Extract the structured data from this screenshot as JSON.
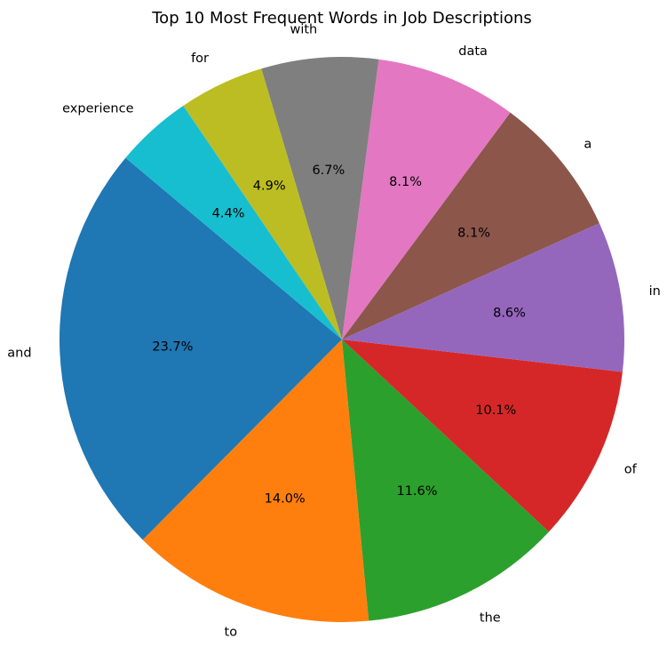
{
  "chart_data": {
    "type": "pie",
    "title": "Top 10 Most Frequent Words in Job Descriptions",
    "start_angle_degrees": 140,
    "direction": "counterclockwise",
    "slices": [
      {
        "label": "and",
        "value": 23.7,
        "pct_label": "23.7%",
        "color": "#1f77b4"
      },
      {
        "label": "to",
        "value": 14.0,
        "pct_label": "14.0%",
        "color": "#ff7f0e"
      },
      {
        "label": "the",
        "value": 11.6,
        "pct_label": "11.6%",
        "color": "#2ca02c"
      },
      {
        "label": "of",
        "value": 10.1,
        "pct_label": "10.1%",
        "color": "#d62728"
      },
      {
        "label": "in",
        "value": 8.6,
        "pct_label": "8.6%",
        "color": "#9467bd"
      },
      {
        "label": "a",
        "value": 8.1,
        "pct_label": "8.1%",
        "color": "#8c564b"
      },
      {
        "label": "data",
        "value": 8.1,
        "pct_label": "8.1%",
        "color": "#e377c2"
      },
      {
        "label": "with",
        "value": 6.7,
        "pct_label": "6.7%",
        "color": "#7f7f7f"
      },
      {
        "label": "for",
        "value": 4.9,
        "pct_label": "4.9%",
        "color": "#bcbd22"
      },
      {
        "label": "experience",
        "value": 4.4,
        "pct_label": "4.4%",
        "color": "#17becf"
      }
    ]
  }
}
